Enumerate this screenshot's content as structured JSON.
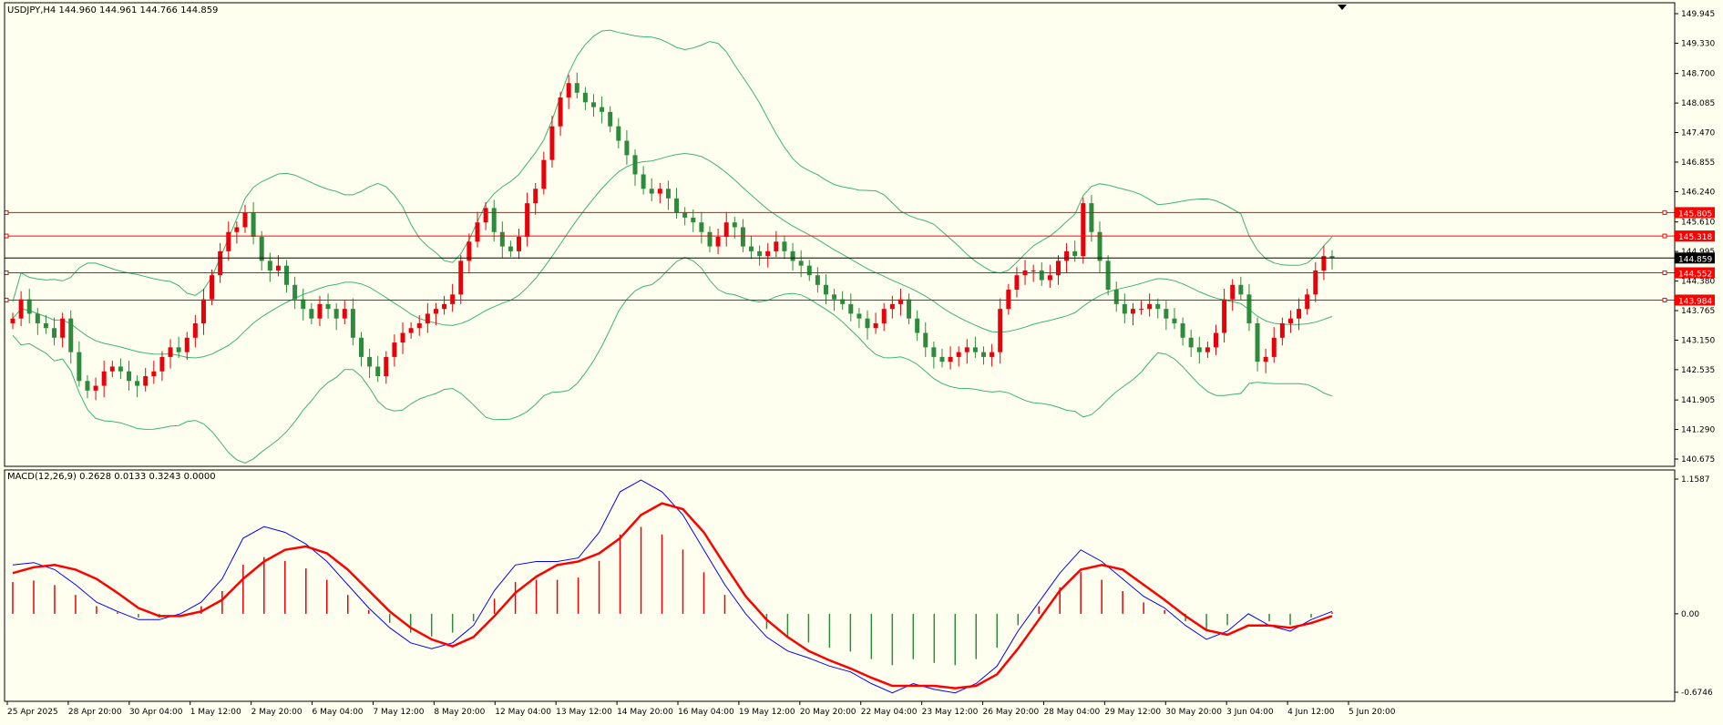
{
  "header": {
    "symbol_line": "USDJPY,H4  144.960 144.961 144.766 144.859"
  },
  "colors": {
    "background": "#fffff0",
    "bull": "#e8000b",
    "bear": "#2e8b3d",
    "bands": "#3cb371",
    "macd_main": "#0000ff",
    "macd_signal": "#ff0000",
    "level_line": "#ff0000",
    "price_line": "#000000"
  },
  "axis_labels": {
    "price_ticks": [
      "149.945",
      "149.330",
      "148.700",
      "148.085",
      "147.470",
      "146.855",
      "146.240",
      "145.610",
      "144.995",
      "144.380",
      "143.765",
      "143.150",
      "142.535",
      "141.905",
      "141.290",
      "140.675"
    ],
    "macd_ticks": [
      "1.1587",
      "0.00",
      "-0.6746"
    ],
    "time_ticks": [
      "25 Apr 2025",
      "28 Apr 20:00",
      "30 Apr 04:00",
      "1 May 12:00",
      "2 May 20:00",
      "6 May 04:00",
      "7 May 12:00",
      "8 May 20:00",
      "12 May 04:00",
      "13 May 12:00",
      "14 May 20:00",
      "16 May 04:00",
      "19 May 12:00",
      "20 May 20:00",
      "22 May 04:00",
      "23 May 12:00",
      "26 May 20:00",
      "28 May 04:00",
      "29 May 12:00",
      "30 May 20:00",
      "3 Jun 04:00",
      "4 Jun 12:00",
      "5 Jun 20:00"
    ]
  },
  "levels": [
    {
      "price": 145.805,
      "label": "145.805",
      "color": "#ff0000"
    },
    {
      "price": 145.318,
      "label": "145.318",
      "color": "#ff0000"
    },
    {
      "price": 144.552,
      "label": "144.552",
      "color": "#ff0000"
    },
    {
      "price": 143.984,
      "label": "143.984",
      "color": "#ff0000"
    },
    {
      "price": 144.859,
      "label": "144.859",
      "color": "#000000"
    }
  ],
  "macd_panel": {
    "label": "MACD(12,26,9) 0.2628 0.0133 0.3243 0.0000"
  },
  "chart_data": {
    "type": "candlestick",
    "symbol": "USDJPY",
    "timeframe": "H4",
    "ylim": [
      140.675,
      149.945
    ],
    "candles_count": 160,
    "candles_ohlc_note": "values interpolated between visible closes",
    "closes": [
      143.6,
      144.0,
      143.7,
      143.5,
      143.4,
      143.2,
      143.6,
      142.9,
      142.3,
      142.1,
      142.2,
      142.5,
      142.6,
      142.5,
      142.3,
      142.2,
      142.4,
      142.5,
      142.8,
      143.0,
      142.9,
      143.2,
      143.5,
      144.0,
      144.5,
      145.0,
      145.4,
      145.5,
      145.8,
      145.3,
      144.8,
      144.6,
      144.7,
      144.3,
      144.0,
      143.8,
      143.6,
      143.9,
      143.8,
      143.6,
      143.8,
      143.2,
      142.8,
      142.6,
      142.4,
      142.8,
      143.1,
      143.3,
      143.4,
      143.5,
      143.7,
      143.8,
      143.9,
      144.1,
      144.8,
      145.2,
      145.6,
      145.9,
      145.4,
      145.1,
      145.0,
      145.3,
      146.0,
      146.3,
      146.9,
      147.6,
      148.2,
      148.5,
      148.3,
      148.1,
      148.0,
      147.9,
      147.6,
      147.3,
      147.0,
      146.6,
      146.3,
      146.2,
      146.3,
      146.1,
      145.8,
      145.7,
      145.6,
      145.4,
      145.1,
      145.3,
      145.6,
      145.5,
      145.1,
      145.0,
      144.9,
      145.0,
      145.2,
      145.0,
      144.8,
      144.7,
      144.5,
      144.3,
      144.1,
      144.0,
      143.9,
      143.7,
      143.6,
      143.4,
      143.5,
      143.8,
      143.9,
      144.0,
      143.6,
      143.3,
      143.0,
      142.8,
      142.7,
      142.8,
      142.9,
      143.0,
      142.9,
      142.8,
      142.9,
      143.8,
      144.2,
      144.5,
      144.6,
      144.6,
      144.4,
      144.5,
      144.8,
      145.0,
      144.9,
      146.0,
      145.4,
      144.8,
      144.2,
      143.9,
      143.7,
      143.8,
      143.8,
      143.9,
      143.8,
      143.6,
      143.5,
      143.2,
      143.0,
      142.9,
      143.0,
      143.3,
      144.0,
      144.3,
      144.1,
      143.5,
      142.7,
      142.8,
      143.2,
      143.5,
      143.6,
      143.8,
      144.1,
      144.6,
      144.9,
      144.86
    ],
    "bollinger": {
      "period": 20,
      "deviations": 2
    },
    "macd": {
      "fast": 12,
      "slow": 26,
      "signal": [
        0.35,
        0.4,
        0.42,
        0.38,
        0.3,
        0.18,
        0.05,
        -0.02,
        -0.02,
        0.02,
        0.12,
        0.3,
        0.45,
        0.55,
        0.58,
        0.52,
        0.38,
        0.2,
        0.02,
        -0.12,
        -0.22,
        -0.28,
        -0.2,
        -0.02,
        0.18,
        0.32,
        0.42,
        0.45,
        0.52,
        0.65,
        0.85,
        0.95,
        0.9,
        0.7,
        0.42,
        0.15,
        -0.05,
        -0.2,
        -0.32,
        -0.4,
        -0.47,
        -0.55,
        -0.62,
        -0.62,
        -0.62,
        -0.64,
        -0.62,
        -0.52,
        -0.3,
        -0.05,
        0.2,
        0.38,
        0.42,
        0.38,
        0.25,
        0.12,
        -0.02,
        -0.14,
        -0.18,
        -0.1,
        -0.1,
        -0.12,
        -0.08,
        -0.02
      ],
      "ylim": [
        -0.6746,
        1.1587
      ],
      "main": [
        0.42,
        0.44,
        0.38,
        0.25,
        0.1,
        0.02,
        -0.05,
        -0.05,
        0.0,
        0.1,
        0.3,
        0.65,
        0.75,
        0.7,
        0.6,
        0.45,
        0.25,
        0.05,
        -0.12,
        -0.25,
        -0.3,
        -0.25,
        -0.1,
        0.2,
        0.42,
        0.45,
        0.45,
        0.48,
        0.7,
        1.05,
        1.15,
        1.05,
        0.85,
        0.55,
        0.25,
        0.0,
        -0.2,
        -0.32,
        -0.38,
        -0.45,
        -0.5,
        -0.6,
        -0.68,
        -0.6,
        -0.65,
        -0.68,
        -0.6,
        -0.45,
        -0.15,
        0.1,
        0.35,
        0.55,
        0.45,
        0.3,
        0.15,
        0.05,
        -0.1,
        -0.22,
        -0.15,
        0.0,
        -0.1,
        -0.15,
        -0.05,
        0.02
      ],
      "histogram_note": "positive bars red, negative bars green"
    }
  }
}
